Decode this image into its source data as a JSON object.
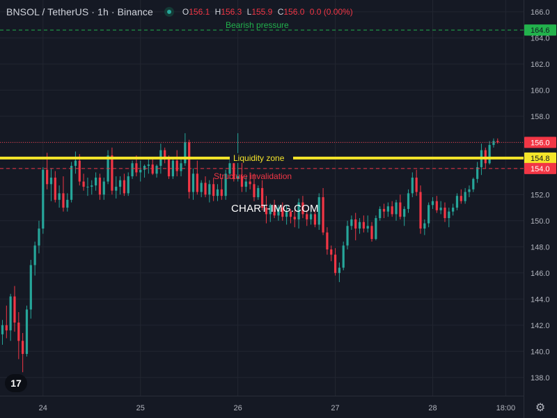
{
  "header": {
    "symbol": "BNSOL / TetherUS · 1h · Binance",
    "o_label": "O",
    "o": "156.1",
    "h_label": "H",
    "h": "156.3",
    "l_label": "L",
    "l": "155.9",
    "c_label": "C",
    "c": "156.0",
    "change": "0.0 (0.00%)"
  },
  "watermark": "CHART-IMG.COM",
  "logo_text": "17",
  "colors": {
    "up": "#26a69a",
    "down": "#f23645",
    "liquidity": "#f5e52a",
    "bearish": "#22b24c",
    "structure": "#f23645",
    "background": "#151924"
  },
  "chart_data": {
    "type": "candlestick",
    "ylim": [
      136.6,
      166.9
    ],
    "y_ticks": [
      138.0,
      140.0,
      142.0,
      144.0,
      146.0,
      148.0,
      150.0,
      152.0,
      154.0,
      156.0,
      158.0,
      160.0,
      162.0,
      164.0,
      166.0
    ],
    "y_tick_labels": [
      "138.0",
      "140.0",
      "142.0",
      "144.0",
      "146.0",
      "148.0",
      "150.0",
      "152.0",
      "154.0",
      "156.0",
      "158.0",
      "160.0",
      "162.0",
      "164.0",
      "166.0"
    ],
    "x_ticks": [
      {
        "label": "24",
        "index": 10
      },
      {
        "label": "25",
        "index": 34
      },
      {
        "label": "26",
        "index": 58
      },
      {
        "label": "27",
        "index": 82
      },
      {
        "label": "28",
        "index": 106
      },
      {
        "label": "18:00",
        "index": 124
      }
    ],
    "candles": [
      [
        141.3,
        142.4,
        140.5,
        142.0
      ],
      [
        142.0,
        143.5,
        141.0,
        141.6
      ],
      [
        141.6,
        144.4,
        140.8,
        144.2
      ],
      [
        144.2,
        145.0,
        141.5,
        142.2
      ],
      [
        142.2,
        143.0,
        139.4,
        140.8
      ],
      [
        140.8,
        141.4,
        138.4,
        139.8
      ],
      [
        139.8,
        143.5,
        139.6,
        143.2
      ],
      [
        143.2,
        147.0,
        142.5,
        146.6
      ],
      [
        146.6,
        148.4,
        145.8,
        148.1
      ],
      [
        148.1,
        150.0,
        147.5,
        149.4
      ],
      [
        149.4,
        154.1,
        149.0,
        153.9
      ],
      [
        153.9,
        155.2,
        152.4,
        152.8
      ],
      [
        152.8,
        154.0,
        151.5,
        153.3
      ],
      [
        153.3,
        153.8,
        151.4,
        151.6
      ],
      [
        151.6,
        152.7,
        151.0,
        152.1
      ],
      [
        152.1,
        153.4,
        150.7,
        151.0
      ],
      [
        151.0,
        152.1,
        150.7,
        151.6
      ],
      [
        151.6,
        154.5,
        151.4,
        154.2
      ],
      [
        154.2,
        155.3,
        153.6,
        154.6
      ],
      [
        154.6,
        155.1,
        152.7,
        153.0
      ],
      [
        153.0,
        153.6,
        152.3,
        152.6
      ],
      [
        152.6,
        153.3,
        151.9,
        152.6
      ],
      [
        152.6,
        153.1,
        152.0,
        152.7
      ],
      [
        152.7,
        153.7,
        152.3,
        153.3
      ],
      [
        153.3,
        153.6,
        151.6,
        152.0
      ],
      [
        152.0,
        153.3,
        151.6,
        153.0
      ],
      [
        153.0,
        155.4,
        152.8,
        155.0
      ],
      [
        155.0,
        155.6,
        152.0,
        152.3
      ],
      [
        152.3,
        153.4,
        151.7,
        152.6
      ],
      [
        152.6,
        153.4,
        152.0,
        153.1
      ],
      [
        153.1,
        153.6,
        151.9,
        152.1
      ],
      [
        152.1,
        153.7,
        151.9,
        153.4
      ],
      [
        153.4,
        154.6,
        153.2,
        154.4
      ],
      [
        154.4,
        155.0,
        153.4,
        153.7
      ],
      [
        153.7,
        154.6,
        153.0,
        153.9
      ],
      [
        153.9,
        154.3,
        153.3,
        154.2
      ],
      [
        154.2,
        154.7,
        153.6,
        154.3
      ],
      [
        154.3,
        154.7,
        153.5,
        153.6
      ],
      [
        153.6,
        154.3,
        153.3,
        154.2
      ],
      [
        154.2,
        155.9,
        153.6,
        155.4
      ],
      [
        155.4,
        155.6,
        154.4,
        154.7
      ],
      [
        154.7,
        155.0,
        153.2,
        153.4
      ],
      [
        153.4,
        154.9,
        153.2,
        154.6
      ],
      [
        154.6,
        155.4,
        153.4,
        153.8
      ],
      [
        153.8,
        154.7,
        153.4,
        154.4
      ],
      [
        154.4,
        156.7,
        154.2,
        156.0
      ],
      [
        156.0,
        156.2,
        151.7,
        152.2
      ],
      [
        152.2,
        154.0,
        151.6,
        153.6
      ],
      [
        153.6,
        154.6,
        152.0,
        152.2
      ],
      [
        152.2,
        153.1,
        151.8,
        152.9
      ],
      [
        152.9,
        153.4,
        151.8,
        152.0
      ],
      [
        152.0,
        153.1,
        151.4,
        152.8
      ],
      [
        152.8,
        153.3,
        151.5,
        151.9
      ],
      [
        151.9,
        152.8,
        151.5,
        152.4
      ],
      [
        152.4,
        153.3,
        151.6,
        151.9
      ],
      [
        151.9,
        153.9,
        151.6,
        153.6
      ],
      [
        153.6,
        154.7,
        153.2,
        154.4
      ],
      [
        154.4,
        155.0,
        153.0,
        153.2
      ],
      [
        153.2,
        156.7,
        153.0,
        153.4
      ],
      [
        153.4,
        154.6,
        152.2,
        152.6
      ],
      [
        152.6,
        153.4,
        152.2,
        153.0
      ],
      [
        153.0,
        153.7,
        152.4,
        152.8
      ],
      [
        152.8,
        153.6,
        151.5,
        151.8
      ],
      [
        151.8,
        152.7,
        151.6,
        152.5
      ],
      [
        152.5,
        153.1,
        150.8,
        151.0
      ],
      [
        151.0,
        151.9,
        149.8,
        150.5
      ],
      [
        150.5,
        151.3,
        149.9,
        151.2
      ],
      [
        151.2,
        151.6,
        150.2,
        150.4
      ],
      [
        150.4,
        151.2,
        150.0,
        151.0
      ],
      [
        151.0,
        151.4,
        150.0,
        150.3
      ],
      [
        150.3,
        151.2,
        149.7,
        150.7
      ],
      [
        150.7,
        150.9,
        149.8,
        150.3
      ],
      [
        150.3,
        150.8,
        149.5,
        150.1
      ],
      [
        150.1,
        151.7,
        149.4,
        151.4
      ],
      [
        151.4,
        151.9,
        150.2,
        150.5
      ],
      [
        150.5,
        150.8,
        149.6,
        150.1
      ],
      [
        150.1,
        151.0,
        149.7,
        150.5
      ],
      [
        150.5,
        150.8,
        149.5,
        149.7
      ],
      [
        149.7,
        152.1,
        149.3,
        151.8
      ],
      [
        151.8,
        152.5,
        148.9,
        149.1
      ],
      [
        149.1,
        149.5,
        147.4,
        147.8
      ],
      [
        147.8,
        148.1,
        146.9,
        147.4
      ],
      [
        147.4,
        147.9,
        145.8,
        146.0
      ],
      [
        146.0,
        146.8,
        145.3,
        146.4
      ],
      [
        146.4,
        148.4,
        146.2,
        148.1
      ],
      [
        148.1,
        150.0,
        147.8,
        149.6
      ],
      [
        149.6,
        150.4,
        149.3,
        150.1
      ],
      [
        150.1,
        150.6,
        148.5,
        149.4
      ],
      [
        149.4,
        150.2,
        149.0,
        149.9
      ],
      [
        149.9,
        150.4,
        149.1,
        149.4
      ],
      [
        149.4,
        150.4,
        149.1,
        149.6
      ],
      [
        149.6,
        149.9,
        148.4,
        148.6
      ],
      [
        148.6,
        150.4,
        148.5,
        150.2
      ],
      [
        150.2,
        151.1,
        150.0,
        150.9
      ],
      [
        150.9,
        151.3,
        150.2,
        150.7
      ],
      [
        150.7,
        151.4,
        150.3,
        151.1
      ],
      [
        151.1,
        151.5,
        150.3,
        150.5
      ],
      [
        150.5,
        151.6,
        150.0,
        151.4
      ],
      [
        151.4,
        152.0,
        150.1,
        150.3
      ],
      [
        150.3,
        151.1,
        149.6,
        150.9
      ],
      [
        150.9,
        152.4,
        150.6,
        152.1
      ],
      [
        152.1,
        153.7,
        151.8,
        153.3
      ],
      [
        153.3,
        153.9,
        151.9,
        152.2
      ],
      [
        152.2,
        152.7,
        149.0,
        149.4
      ],
      [
        149.4,
        150.1,
        148.9,
        149.8
      ],
      [
        149.8,
        151.4,
        149.5,
        151.2
      ],
      [
        151.2,
        151.8,
        150.9,
        151.5
      ],
      [
        151.5,
        151.9,
        150.6,
        150.8
      ],
      [
        150.8,
        151.5,
        150.5,
        151.0
      ],
      [
        151.0,
        151.4,
        149.9,
        150.2
      ],
      [
        150.2,
        151.0,
        149.5,
        150.7
      ],
      [
        150.7,
        151.3,
        150.4,
        151.0
      ],
      [
        151.0,
        152.1,
        150.8,
        151.9
      ],
      [
        151.9,
        152.4,
        151.3,
        151.5
      ],
      [
        151.5,
        152.5,
        151.3,
        152.2
      ],
      [
        152.2,
        152.7,
        151.8,
        152.4
      ],
      [
        152.4,
        153.3,
        152.2,
        153.2
      ],
      [
        153.2,
        154.5,
        152.9,
        154.1
      ],
      [
        154.1,
        155.9,
        153.5,
        155.4
      ],
      [
        155.4,
        155.6,
        154.0,
        154.4
      ],
      [
        154.4,
        156.1,
        154.3,
        155.8
      ],
      [
        155.8,
        156.3,
        155.6,
        156.1
      ],
      [
        156.1,
        156.3,
        155.9,
        156.0
      ]
    ],
    "price_lines": [
      {
        "name": "Bearish pressure",
        "value": 164.6,
        "style": "dashed",
        "color": "#22b24c",
        "tag": "164.6"
      },
      {
        "name": "Liquidity zone",
        "value": 154.8,
        "style": "thick",
        "color": "#f5e52a",
        "tag": "154.8"
      },
      {
        "name": "Structure invalidation",
        "value": 154.0,
        "style": "dashed",
        "color": "#f23645",
        "tag": "154.0"
      },
      {
        "name": "",
        "value": 156.0,
        "style": "dotted",
        "color": "#f23645",
        "tag": "156.0"
      }
    ]
  }
}
